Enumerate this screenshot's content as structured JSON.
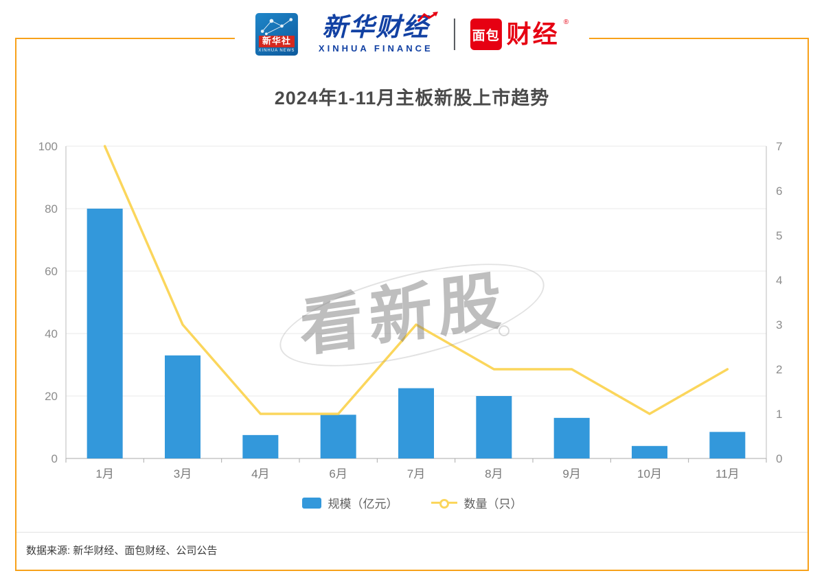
{
  "header": {
    "xinhua_news": {
      "box_label": "新华社",
      "box_sub": "XINHUA NEWS"
    },
    "xinhua_finance": {
      "cn": "新华财经",
      "en": "XINHUA FINANCE"
    },
    "bread_finance": {
      "box": "面包",
      "cn": "财经",
      "reg": "®"
    }
  },
  "chart_data": {
    "type": "bar+line",
    "title": "2024年1-11月主板新股上市趋势",
    "categories": [
      "1月",
      "3月",
      "4月",
      "6月",
      "7月",
      "8月",
      "9月",
      "10月",
      "11月"
    ],
    "series": [
      {
        "name": "规模（亿元）",
        "type": "bar",
        "axis": "left",
        "color": "#3398db",
        "values": [
          80,
          33,
          7.5,
          14,
          22.5,
          20,
          13,
          4,
          8.5
        ]
      },
      {
        "name": "数量（只）",
        "type": "line",
        "axis": "right",
        "color": "#fbd65c",
        "values": [
          7,
          3,
          1,
          1,
          3,
          2,
          2,
          1,
          2
        ]
      }
    ],
    "left_axis": {
      "min": 0,
      "max": 100,
      "ticks": [
        0,
        20,
        40,
        60,
        80,
        100
      ]
    },
    "right_axis": {
      "min": 0,
      "max": 7,
      "ticks": [
        0,
        1,
        2,
        3,
        4,
        5,
        6,
        7
      ]
    },
    "xlabel": "",
    "ylabel": "",
    "grid": true,
    "legend_position": "bottom"
  },
  "watermark": "看新股",
  "footer": {
    "source": "数据来源: 新华财经、面包财经、公司公告"
  },
  "colors": {
    "frame_border": "#F7A11A",
    "bar": "#3398db",
    "line": "#fbd65c",
    "title_text": "#4a4a4a",
    "axis_text": "#8c8c8c",
    "grid_line": "#e8e8e8",
    "axis_line": "#bbbbbb",
    "brand_blue": "#1241a3",
    "brand_red": "#e60012"
  }
}
